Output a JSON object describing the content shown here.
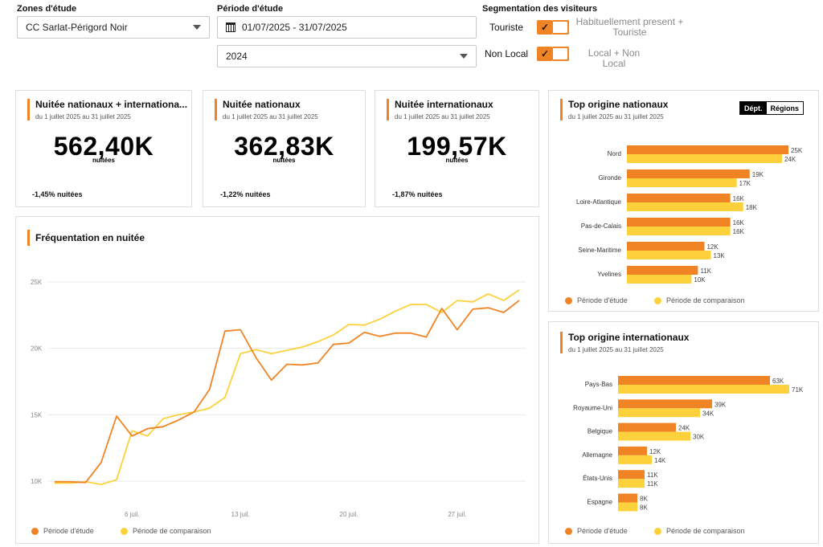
{
  "filters": {
    "zones_label": "Zones d'étude",
    "zones_value": "CC Sarlat-Périgord Noir",
    "periode_label": "Période d'étude",
    "periode_value": "01/07/2025 - 31/07/2025",
    "comparison_year": "2024",
    "segmentation_label": "Segmentation des visiteurs",
    "segments": [
      {
        "label": "Touriste",
        "desc": "Habituellement present + Touriste"
      },
      {
        "label": "Non Local",
        "desc": "Local + Non Local"
      }
    ]
  },
  "kpis": [
    {
      "title": "Nuitée nationaux + internationa...",
      "subtitle": "du 1 juillet 2025 au 31 juillet 2025",
      "value": "562,40K",
      "unit": "nuitées",
      "variation": "-1,45% nuitées"
    },
    {
      "title": "Nuitée nationaux",
      "subtitle": "du 1 juillet 2025 au 31 juillet 2025",
      "value": "362,83K",
      "unit": "nuitées",
      "variation": "-1,22% nuitées"
    },
    {
      "title": "Nuitée internationaux",
      "subtitle": "du 1 juillet 2025 au 31 juillet 2025",
      "value": "199,57K",
      "unit": "nuitées",
      "variation": "-1,87% nuitées"
    }
  ],
  "colors": {
    "accent": "#f08424",
    "study": "#f08424",
    "comparison": "#fdd13c"
  },
  "legend": {
    "study": "Période d'étude",
    "comparison": "Période de comparaison"
  },
  "top_nat": {
    "title": "Top origine nationaux",
    "subtitle": "du 1 juillet 2025 au 31 juillet 2025",
    "toggle": [
      "Dépt.",
      "Régions"
    ]
  },
  "top_int": {
    "title": "Top origine internationaux",
    "subtitle": "du 1 juillet 2025 au 31 juillet 2025"
  },
  "chart_data": [
    {
      "type": "line",
      "title": "Fréquentation en nuitée",
      "yticks": [
        "25K",
        "20K",
        "15K",
        "10K"
      ],
      "xticks": [
        "6 juil.",
        "13 juil.",
        "20 juil.",
        "27 juil."
      ],
      "ylim": [
        10000,
        25000
      ],
      "x": [
        1,
        2,
        3,
        4,
        5,
        6,
        7,
        8,
        9,
        10,
        11,
        12,
        13,
        14,
        15,
        16,
        17,
        18,
        19,
        20,
        21,
        22,
        23,
        24,
        25,
        26,
        27,
        28,
        29,
        30,
        31
      ],
      "series": [
        {
          "name": "Période d'étude",
          "values": [
            9950,
            9950,
            9900,
            11400,
            14900,
            13400,
            13950,
            14100,
            14600,
            15200,
            16900,
            21300,
            21400,
            19300,
            17600,
            18800,
            18750,
            18900,
            20300,
            20400,
            21200,
            20900,
            21150,
            21150,
            20850,
            23000,
            21400,
            22950,
            23050,
            22700,
            23600
          ]
        },
        {
          "name": "Période de comparaison",
          "values": [
            9850,
            9850,
            9950,
            9750,
            10100,
            13800,
            13400,
            14700,
            15000,
            15200,
            15500,
            16300,
            19600,
            19900,
            19600,
            19850,
            20100,
            20500,
            21000,
            21800,
            21750,
            22200,
            22800,
            23300,
            23300,
            22700,
            23600,
            23500,
            24100,
            23600,
            24400
          ]
        }
      ]
    },
    {
      "type": "bar",
      "title": "Top origine nationaux",
      "categories": [
        "Nord",
        "Gironde",
        "Loire-Atlantique",
        "Pas-de-Calais",
        "Seine-Maritime",
        "Yvelines"
      ],
      "series": [
        {
          "name": "Période d'étude",
          "values": [
            25,
            19,
            16,
            16,
            12,
            11
          ],
          "labels": [
            "25K",
            "19K",
            "16K",
            "16K",
            "12K",
            "11K"
          ]
        },
        {
          "name": "Période de comparaison",
          "values": [
            24,
            17,
            18,
            16,
            13,
            10
          ],
          "labels": [
            "24K",
            "17K",
            "18K",
            "16K",
            "13K",
            "10K"
          ]
        }
      ]
    },
    {
      "type": "bar",
      "title": "Top origine internationaux",
      "categories": [
        "Pays-Bas",
        "Royaume-Uni",
        "Belgique",
        "Allemagne",
        "États-Unis",
        "Espagne"
      ],
      "series": [
        {
          "name": "Période d'étude",
          "values": [
            63,
            39,
            24,
            12,
            11,
            8
          ],
          "labels": [
            "63K",
            "39K",
            "24K",
            "12K",
            "11K",
            "8K"
          ]
        },
        {
          "name": "Période de comparaison",
          "values": [
            71,
            34,
            30,
            14,
            11,
            8
          ],
          "labels": [
            "71K",
            "34K",
            "30K",
            "14K",
            "11K",
            "8K"
          ]
        }
      ]
    }
  ]
}
